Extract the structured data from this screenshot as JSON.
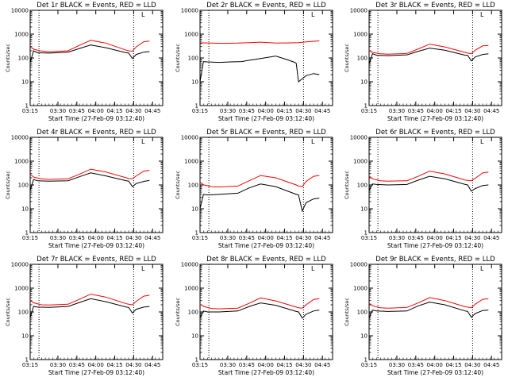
{
  "chart_data": {
    "type": "line",
    "x_tick_labels": [
      "03:15",
      "03:30",
      "03:45",
      "04:00",
      "04:15",
      "04:30",
      "04:45"
    ],
    "y_tick_labels": [
      "1",
      "10",
      "100",
      "1000",
      "10000"
    ],
    "ylim": [
      1,
      10000
    ],
    "yscale": "log",
    "xlim_minutes": [
      0,
      35
    ],
    "xlabel": "Start Time (27-Feb-09 03:12:40)",
    "ylabel": "Counts/sec",
    "legend_marker": "L",
    "colors": {
      "events": "#000000",
      "lld": "#ff0000"
    },
    "panels": [
      {
        "title": "Det 1r BLACK = Events, RED = LLD",
        "events": {
          "x": [
            0,
            0.9,
            2,
            5,
            10,
            13,
            16,
            20,
            25.4,
            26,
            27,
            28,
            30,
            31.5
          ],
          "y": [
            65,
            200,
            165,
            160,
            175,
            250,
            350,
            270,
            165,
            160,
            95,
            140,
            175,
            185
          ]
        },
        "lld": {
          "x": [
            0,
            1,
            3,
            5,
            10,
            13,
            16,
            20,
            25.4,
            26,
            27,
            28,
            30,
            31.5
          ],
          "y": [
            290,
            230,
            195,
            180,
            200,
            340,
            550,
            420,
            210,
            200,
            190,
            290,
            480,
            510
          ]
        }
      },
      {
        "title": "Det 2r BLACK = Events, RED = LLD",
        "events": {
          "x": [
            0,
            0.9,
            2,
            5,
            8,
            11,
            13,
            16,
            20,
            23,
            25,
            25.4,
            26,
            28,
            30,
            31.5
          ],
          "y": [
            10,
            70,
            68,
            65,
            68,
            70,
            80,
            95,
            120,
            85,
            65,
            60,
            10,
            18,
            22,
            20
          ]
        },
        "lld": {
          "x": [
            0,
            3,
            6,
            10,
            13,
            16,
            20,
            24,
            26,
            28,
            30,
            31.5
          ],
          "y": [
            430,
            420,
            410,
            420,
            440,
            460,
            420,
            430,
            440,
            470,
            500,
            520
          ]
        }
      },
      {
        "title": "Det 3r BLACK = Events, RED = LLD",
        "events": {
          "x": [
            0,
            0.9,
            2,
            5,
            10,
            13,
            16,
            20,
            25.4,
            26,
            27,
            28,
            30,
            31.5
          ],
          "y": [
            55,
            150,
            130,
            125,
            135,
            190,
            260,
            210,
            130,
            130,
            75,
            110,
            140,
            150
          ]
        },
        "lld": {
          "x": [
            0,
            1,
            3,
            5,
            10,
            13,
            16,
            20,
            25.4,
            26,
            27,
            28,
            30,
            31.5
          ],
          "y": [
            200,
            170,
            150,
            145,
            155,
            240,
            380,
            290,
            170,
            160,
            150,
            210,
            320,
            330
          ]
        }
      },
      {
        "title": "Det 4r BLACK = Events, RED = LLD",
        "events": {
          "x": [
            0,
            0.9,
            2,
            5,
            10,
            13,
            16,
            20,
            25.4,
            26,
            27,
            28,
            30,
            31.5
          ],
          "y": [
            60,
            170,
            150,
            145,
            150,
            220,
            320,
            240,
            150,
            145,
            85,
            115,
            140,
            155
          ]
        },
        "lld": {
          "x": [
            0,
            1,
            3,
            5,
            10,
            13,
            16,
            20,
            25.4,
            26,
            27,
            28,
            30,
            31.5
          ],
          "y": [
            280,
            210,
            180,
            170,
            180,
            280,
            460,
            350,
            200,
            185,
            180,
            240,
            380,
            410
          ]
        }
      },
      {
        "title": "Det 5r BLACK = Events, RED = LLD",
        "events": {
          "x": [
            0,
            0.9,
            2,
            5,
            10,
            13,
            16,
            20,
            25.4,
            26,
            27,
            28,
            30,
            31.5
          ],
          "y": [
            10,
            40,
            38,
            40,
            45,
            75,
            110,
            85,
            40,
            38,
            8,
            18,
            26,
            28
          ]
        },
        "lld": {
          "x": [
            0,
            1,
            3,
            5,
            10,
            13,
            16,
            20,
            25.4,
            26,
            27,
            28,
            30,
            31.5
          ],
          "y": [
            130,
            100,
            85,
            82,
            90,
            150,
            250,
            200,
            100,
            90,
            85,
            140,
            230,
            250
          ]
        }
      },
      {
        "title": "Det 6r BLACK = Events, RED = LLD",
        "events": {
          "x": [
            0,
            0.9,
            2,
            5,
            10,
            13,
            16,
            20,
            25.4,
            26,
            27,
            28,
            30,
            31.5
          ],
          "y": [
            60,
            110,
            105,
            100,
            105,
            160,
            230,
            180,
            105,
            100,
            55,
            70,
            95,
            100
          ]
        },
        "lld": {
          "x": [
            0,
            1,
            3,
            5,
            10,
            13,
            16,
            20,
            25.4,
            26,
            27,
            28,
            30,
            31.5
          ],
          "y": [
            230,
            180,
            150,
            145,
            150,
            230,
            380,
            290,
            160,
            155,
            150,
            190,
            320,
            350
          ]
        }
      },
      {
        "title": "Det 7r BLACK = Events, RED = LLD",
        "events": {
          "x": [
            0,
            0.9,
            2,
            5,
            10,
            13,
            16,
            20,
            25.4,
            26,
            27,
            28,
            30,
            31.5
          ],
          "y": [
            60,
            170,
            160,
            155,
            170,
            250,
            360,
            270,
            160,
            155,
            90,
            130,
            160,
            170
          ]
        },
        "lld": {
          "x": [
            0,
            1,
            3,
            5,
            10,
            13,
            16,
            20,
            25.4,
            26,
            27,
            28,
            30,
            31.5
          ],
          "y": [
            300,
            240,
            200,
            195,
            210,
            340,
            560,
            420,
            220,
            210,
            200,
            280,
            460,
            500
          ]
        }
      },
      {
        "title": "Det 8r BLACK = Events, RED = LLD",
        "events": {
          "x": [
            0,
            0.9,
            2,
            5,
            10,
            13,
            16,
            20,
            25.4,
            26,
            27,
            28,
            30,
            31.5
          ],
          "y": [
            55,
            110,
            100,
            100,
            110,
            170,
            240,
            190,
            105,
            100,
            55,
            80,
            110,
            120
          ]
        },
        "lld": {
          "x": [
            0,
            1,
            3,
            5,
            10,
            13,
            16,
            20,
            25.4,
            26,
            27,
            28,
            30,
            31.5
          ],
          "y": [
            210,
            170,
            140,
            135,
            145,
            230,
            390,
            290,
            160,
            150,
            145,
            200,
            330,
            360
          ]
        }
      },
      {
        "title": "Det 9r BLACK = Events, RED = LLD",
        "events": {
          "x": [
            0,
            0.9,
            2,
            5,
            10,
            13,
            16,
            20,
            25.4,
            26,
            27,
            28,
            30,
            31.5
          ],
          "y": [
            55,
            120,
            110,
            105,
            110,
            180,
            260,
            200,
            110,
            105,
            60,
            85,
            115,
            120
          ]
        },
        "lld": {
          "x": [
            0,
            1,
            3,
            5,
            10,
            13,
            16,
            20,
            25.4,
            26,
            27,
            28,
            30,
            31.5
          ],
          "y": [
            230,
            180,
            150,
            145,
            155,
            240,
            400,
            300,
            165,
            160,
            150,
            210,
            340,
            360
          ]
        }
      }
    ]
  }
}
